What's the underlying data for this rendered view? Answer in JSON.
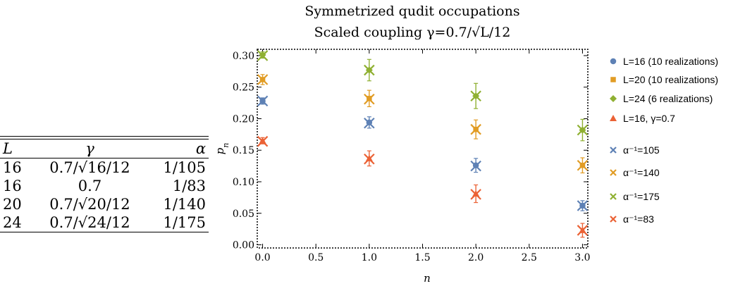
{
  "table": {
    "headers": [
      "L",
      "γ",
      "α"
    ],
    "rows": [
      [
        "16",
        "0.7/√16/12",
        "1/105"
      ],
      [
        "16",
        "0.7",
        "1/83"
      ],
      [
        "20",
        "0.7/√20/12",
        "1/140"
      ],
      [
        "24",
        "0.7/√24/12",
        "1/175"
      ]
    ]
  },
  "chart_data": {
    "type": "scatter",
    "title": "Symmetrized qudit occupations",
    "subtitle": "Scaled coupling γ=0.7/√L/12",
    "xlabel": "n",
    "ylabel": "p_n",
    "xlim": [
      -0.05,
      3.05
    ],
    "ylim": [
      -0.005,
      0.31
    ],
    "xticks": [
      "0.0",
      "0.5",
      "1.0",
      "1.5",
      "2.0",
      "2.5",
      "3.0"
    ],
    "xtick_values": [
      0,
      0.5,
      1,
      1.5,
      2,
      2.5,
      3
    ],
    "yticks": [
      "0.00",
      "0.05",
      "0.10",
      "0.15",
      "0.20",
      "0.25",
      "0.30"
    ],
    "ytick_values": [
      0,
      0.05,
      0.1,
      0.15,
      0.2,
      0.25,
      0.3
    ],
    "legend_position": "right",
    "series": [
      {
        "name": "L=16 (10 realizations)",
        "marker": "circle",
        "color": "#5e81b5",
        "x": [
          0,
          1,
          2,
          3
        ],
        "y": [
          0.228,
          0.194,
          0.126,
          0.062
        ],
        "err": [
          0.005,
          0.009,
          0.011,
          0.008
        ]
      },
      {
        "name": "L=20 (10 realizations)",
        "marker": "square",
        "color": "#e19c24",
        "x": [
          0,
          1,
          2,
          3
        ],
        "y": [
          0.262,
          0.232,
          0.183,
          0.126
        ],
        "err": [
          0.008,
          0.013,
          0.015,
          0.012
        ]
      },
      {
        "name": "L=24 (6 realizations)",
        "marker": "diamond",
        "color": "#8fb032",
        "x": [
          0,
          1,
          2,
          3
        ],
        "y": [
          0.301,
          0.277,
          0.236,
          0.182
        ],
        "err": [
          0.005,
          0.017,
          0.02,
          0.017
        ]
      },
      {
        "name": "L=16, γ=0.7",
        "marker": "triangle",
        "color": "#eb6235",
        "x": [
          0,
          1,
          2,
          3
        ],
        "y": [
          0.165,
          0.137,
          0.081,
          0.023
        ],
        "err": [
          0.005,
          0.012,
          0.014,
          0.011
        ]
      },
      {
        "name": "α⁻¹=105",
        "marker": "x",
        "color": "#5e81b5",
        "x": [
          0,
          1,
          2,
          3
        ],
        "y": [
          0.228,
          0.193,
          0.125,
          0.062
        ]
      },
      {
        "name": "α⁻¹=140",
        "marker": "x",
        "color": "#e19c24",
        "x": [
          0,
          1,
          2,
          3
        ],
        "y": [
          0.262,
          0.231,
          0.183,
          0.126
        ]
      },
      {
        "name": "α⁻¹=175",
        "marker": "x",
        "color": "#8fb032",
        "x": [
          0,
          1,
          2,
          3
        ],
        "y": [
          0.3,
          0.277,
          0.236,
          0.182
        ]
      },
      {
        "name": "α⁻¹=83",
        "marker": "x",
        "color": "#eb6235",
        "x": [
          0,
          1,
          2,
          3
        ],
        "y": [
          0.164,
          0.136,
          0.08,
          0.023
        ]
      }
    ]
  }
}
